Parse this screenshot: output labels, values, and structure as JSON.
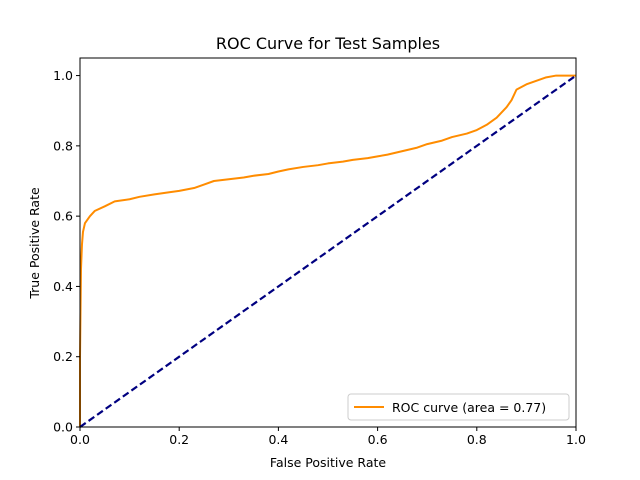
{
  "chart_data": {
    "type": "line",
    "title": "ROC Curve for Test Samples",
    "xlabel": "False Positive Rate",
    "ylabel": "True Positive Rate",
    "xlim": [
      0.0,
      1.0
    ],
    "ylim": [
      0.0,
      1.05
    ],
    "xticks": [
      0.0,
      0.2,
      0.4,
      0.6,
      0.8,
      1.0
    ],
    "xtick_labels": [
      "0.0",
      "0.2",
      "0.4",
      "0.6",
      "0.8",
      "1.0"
    ],
    "yticks": [
      0.0,
      0.2,
      0.4,
      0.6,
      0.8,
      1.0
    ],
    "ytick_labels": [
      "0.0",
      "0.2",
      "0.4",
      "0.6",
      "0.8",
      "1.0"
    ],
    "grid": false,
    "legend_position": "lower-right",
    "series": [
      {
        "name": "ROC curve (area = 0.77)",
        "color": "#ff8c00",
        "style": "solid",
        "x": [
          0.0,
          0.0,
          0.002,
          0.004,
          0.006,
          0.01,
          0.015,
          0.02,
          0.03,
          0.05,
          0.07,
          0.1,
          0.12,
          0.15,
          0.18,
          0.2,
          0.23,
          0.25,
          0.27,
          0.3,
          0.33,
          0.35,
          0.38,
          0.4,
          0.42,
          0.45,
          0.48,
          0.5,
          0.53,
          0.55,
          0.58,
          0.6,
          0.62,
          0.65,
          0.68,
          0.7,
          0.73,
          0.75,
          0.78,
          0.8,
          0.82,
          0.84,
          0.86,
          0.87,
          0.88,
          0.9,
          0.92,
          0.94,
          0.96,
          0.98,
          1.0
        ],
        "y": [
          0.0,
          0.2,
          0.45,
          0.52,
          0.555,
          0.58,
          0.59,
          0.6,
          0.615,
          0.628,
          0.642,
          0.648,
          0.655,
          0.662,
          0.668,
          0.672,
          0.68,
          0.69,
          0.7,
          0.705,
          0.71,
          0.715,
          0.72,
          0.727,
          0.733,
          0.74,
          0.745,
          0.75,
          0.755,
          0.76,
          0.765,
          0.77,
          0.775,
          0.785,
          0.795,
          0.805,
          0.815,
          0.825,
          0.835,
          0.845,
          0.86,
          0.88,
          0.91,
          0.93,
          0.96,
          0.975,
          0.985,
          0.995,
          1.0,
          1.0,
          1.0
        ]
      },
      {
        "name": "",
        "color": "#000080",
        "style": "dashed",
        "x": [
          0.0,
          1.0
        ],
        "y": [
          0.0,
          1.0
        ]
      }
    ]
  }
}
